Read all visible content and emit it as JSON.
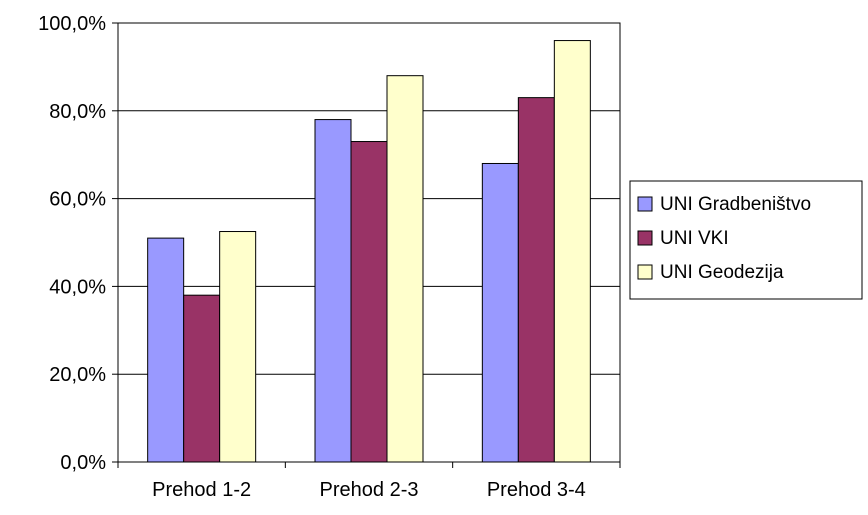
{
  "chart_data": {
    "type": "bar",
    "categories": [
      "Prehod 1-2",
      "Prehod 2-3",
      "Prehod 3-4"
    ],
    "series": [
      {
        "name": "UNI Gradbeništvo",
        "values": [
          51.0,
          78.0,
          68.0
        ],
        "color": "#9999ff"
      },
      {
        "name": "UNI VKI",
        "values": [
          38.0,
          73.0,
          83.0
        ],
        "color": "#993366"
      },
      {
        "name": "UNI Geodezija",
        "values": [
          52.5,
          88.0,
          96.0
        ],
        "color": "#ffffcc"
      }
    ],
    "ylim": [
      0,
      100
    ],
    "yticks": [
      0,
      20,
      40,
      60,
      80,
      100
    ],
    "ytick_labels": [
      "0,0%",
      "20,0%",
      "40,0%",
      "60,0%",
      "80,0%",
      "100,0%"
    ],
    "grid": true,
    "legend_position": "right"
  }
}
